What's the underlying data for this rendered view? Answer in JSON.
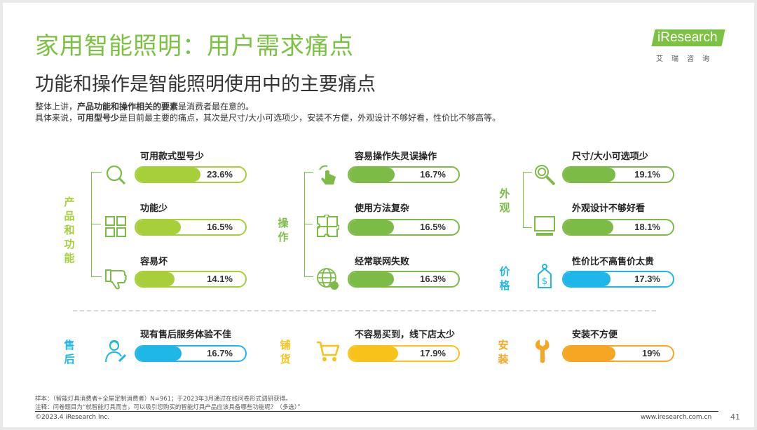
{
  "title": "家用智能照明：用户需求痛点",
  "subtitle": "功能和操作是智能照明使用中的主要痛点",
  "intro": {
    "l1_pre": "整体上讲，",
    "l1_bold": "产品功能和操作相关的要素",
    "l1_post": "是消费者最在意的。",
    "l2_pre": "具体来说，",
    "l2_bold": "可用型号少",
    "l2_post": "是目前最主要的痛点，其次是尺寸/大小可选项少，安装不方便，外观设计不够好看，性价比不够高等。"
  },
  "logo": {
    "word": "iResearch",
    "cn": "艾瑞咨询"
  },
  "colors": {
    "green_light": "#a6cf3a",
    "green_dark": "#7cbb46",
    "blue": "#1fb6e8",
    "yellow": "#f8c21a",
    "orange": "#f6a623"
  },
  "categories": {
    "product": "产品和功能",
    "operation": "操作",
    "appearance": "外观",
    "price": "价格",
    "aftersales": "售后",
    "channel": "铺货",
    "install": "安装"
  },
  "items": [
    {
      "label": "可用款式型号少",
      "value": 23.6,
      "display": "23.6%"
    },
    {
      "label": "功能少",
      "value": 16.5,
      "display": "16.5%"
    },
    {
      "label": "容易坏",
      "value": 14.1,
      "display": "14.1%"
    },
    {
      "label": "容易操作失灵误操作",
      "value": 16.7,
      "display": "16.7%"
    },
    {
      "label": "使用方法复杂",
      "value": 16.5,
      "display": "16.5%"
    },
    {
      "label": "经常联网失败",
      "value": 16.3,
      "display": "16.3%"
    },
    {
      "label": "尺寸/大小可选项少",
      "value": 19.1,
      "display": "19.1%"
    },
    {
      "label": "外观设计不够好看",
      "value": 18.1,
      "display": "18.1%"
    },
    {
      "label": "性价比不高售价太贵",
      "value": 17.3,
      "display": "17.3%"
    },
    {
      "label": "现有售后服务体验不佳",
      "value": 16.7,
      "display": "16.7%"
    },
    {
      "label": "不容易买到，线下店太少",
      "value": 17.9,
      "display": "17.9%"
    },
    {
      "label": "安装不方便",
      "value": 19,
      "display": "19%"
    }
  ],
  "icons": [
    "search-icon",
    "grid-icon",
    "thumbs-down-icon",
    "tap-icon",
    "puzzle-icon",
    "globe-icon",
    "magnifier-icon",
    "monitor-icon",
    "price-tag-icon",
    "service-person-icon",
    "cart-icon",
    "wrench-icon"
  ],
  "footer": {
    "note1": "样本：（智能灯具消费者+全屋定制消费者）N=961；于2023年3月通过在线问卷形式调研获得。",
    "note2": "注释：问卷题目为“就智能灯具而言，可以吸引您购买的智能灯具产品应该具备哪些功能呢？（多选）”",
    "copyright": "©2023.4 iResearch Inc.",
    "url": "www.iresearch.com.cn",
    "page": "41"
  }
}
